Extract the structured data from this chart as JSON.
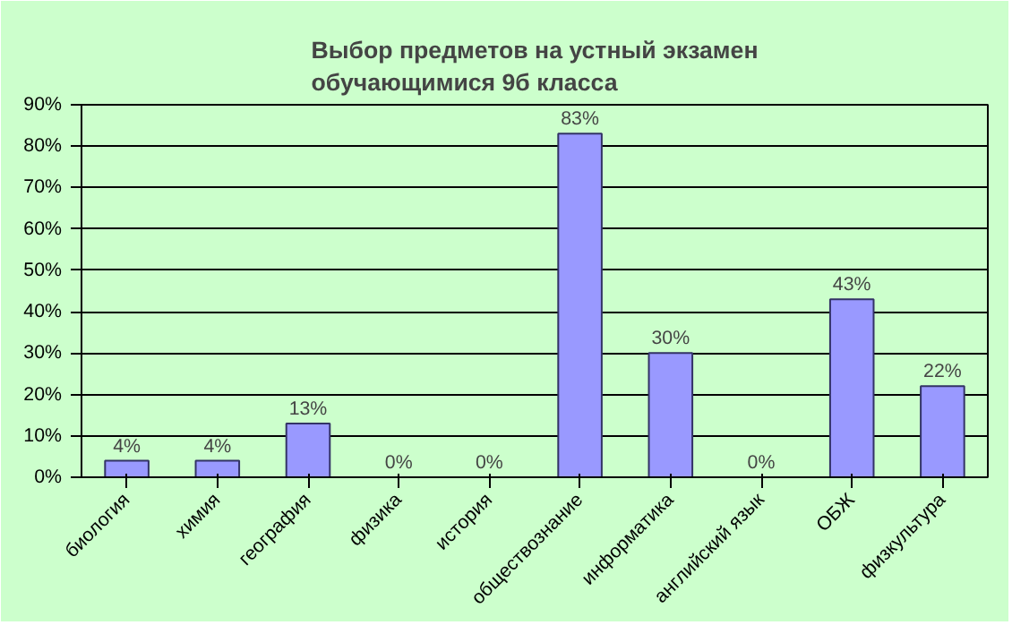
{
  "chart_data": {
    "type": "bar",
    "title": "Выбор предметов на устный экзамен\nобучающимися 9б класса",
    "categories": [
      "биология",
      "химия",
      "география",
      "физика",
      "история",
      "обществознание",
      "информатика",
      "английский язык",
      "ОБЖ",
      "физкультура"
    ],
    "values": [
      4,
      4,
      13,
      0,
      0,
      83,
      30,
      0,
      43,
      22
    ],
    "value_labels": [
      "4%",
      "4%",
      "13%",
      "0%",
      "0%",
      "83%",
      "30%",
      "0%",
      "43%",
      "22%"
    ],
    "color": "#9999ff",
    "ylim": [
      0,
      90
    ],
    "yticks": [
      {
        "value": 0,
        "label": "0%"
      },
      {
        "value": 10,
        "label": "10%"
      },
      {
        "value": 20,
        "label": "20%"
      },
      {
        "value": 30,
        "label": "30%"
      },
      {
        "value": 40,
        "label": "40%"
      },
      {
        "value": 50,
        "label": "50%"
      },
      {
        "value": 60,
        "label": "60%"
      },
      {
        "value": 70,
        "label": "70%"
      },
      {
        "value": 80,
        "label": "80%"
      },
      {
        "value": 90,
        "label": "90%"
      }
    ],
    "grid": "y"
  }
}
